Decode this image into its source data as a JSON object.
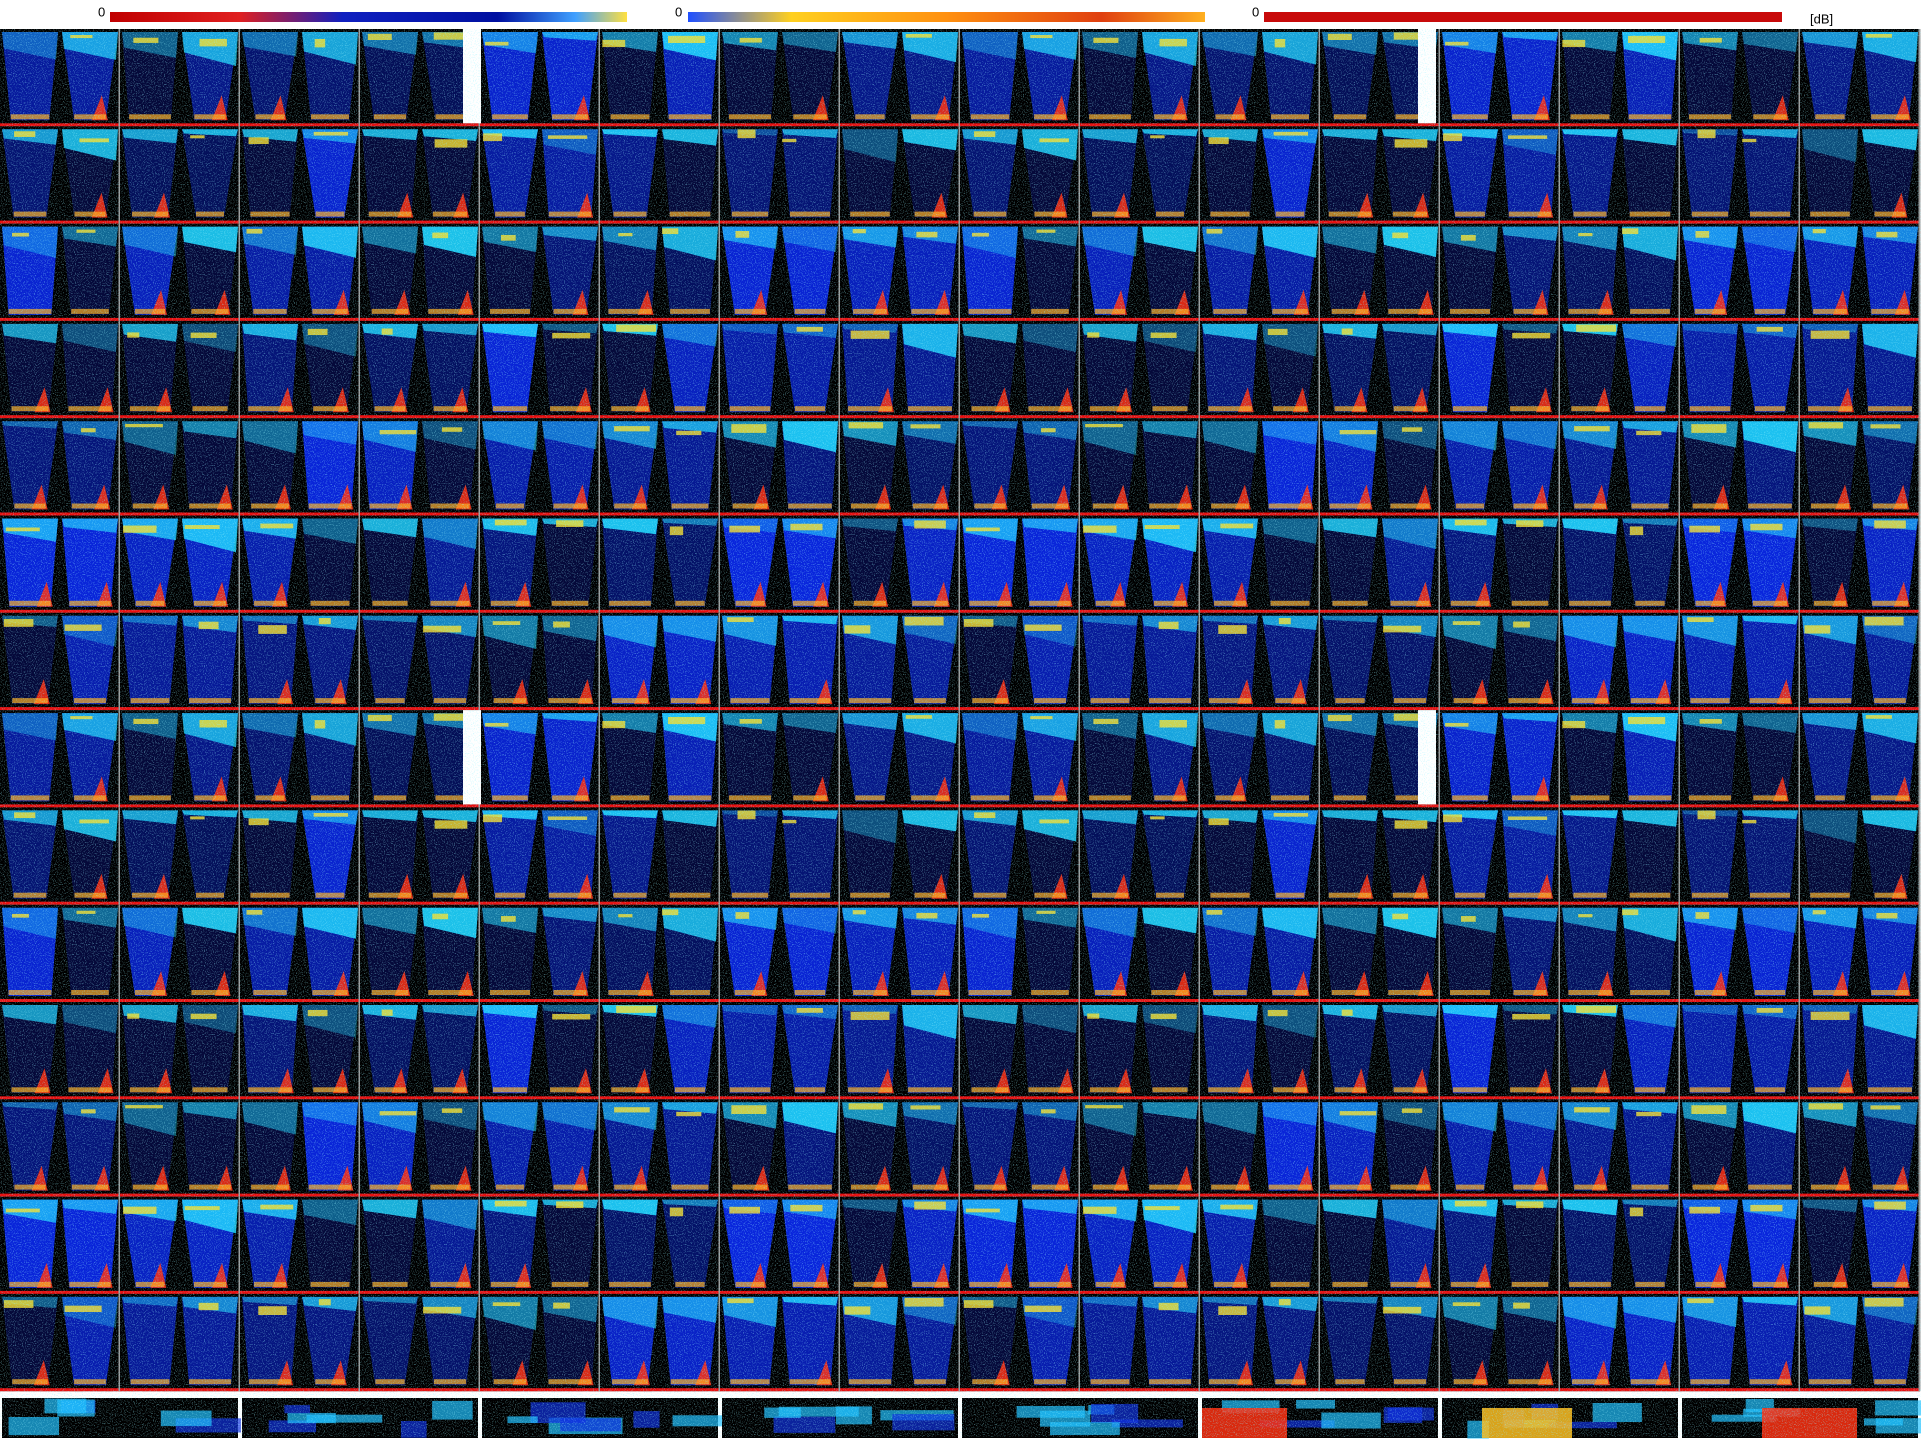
{
  "colorbars": [
    {
      "label": "0"
    },
    {
      "label": "0"
    },
    {
      "label": "0"
    }
  ],
  "unit": "[dB]"
}
